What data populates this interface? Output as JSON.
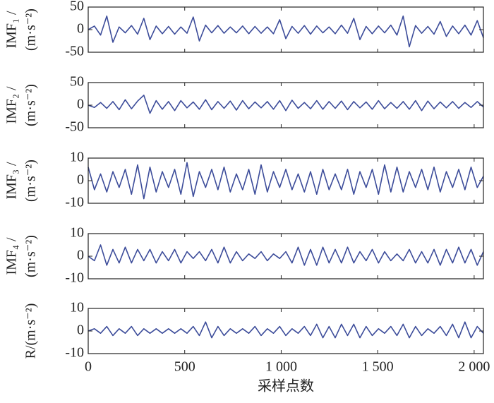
{
  "chart_data": [
    {
      "type": "line",
      "ylabel": [
        "IMF₁ /",
        "(m·s⁻²)"
      ],
      "color": "#3c4c9a",
      "x": [
        0,
        32,
        64,
        96,
        128,
        160,
        192,
        224,
        256,
        288,
        320,
        352,
        384,
        416,
        448,
        480,
        512,
        544,
        576,
        608,
        640,
        672,
        704,
        736,
        768,
        800,
        832,
        864,
        896,
        928,
        960,
        992,
        1024,
        1056,
        1088,
        1120,
        1152,
        1184,
        1216,
        1248,
        1280,
        1312,
        1344,
        1376,
        1408,
        1440,
        1472,
        1504,
        1536,
        1568,
        1600,
        1632,
        1664,
        1696,
        1728,
        1760,
        1792,
        1824,
        1856,
        1888,
        1920,
        1952,
        1984,
        2016,
        2048
      ],
      "values": [
        0,
        8,
        -12,
        30,
        -28,
        6,
        -7,
        9,
        -10,
        25,
        -22,
        8,
        -9,
        7,
        -10,
        6,
        -8,
        28,
        -25,
        10,
        -7,
        9,
        -8,
        6,
        -7,
        8,
        -9,
        7,
        -8,
        6,
        -9,
        22,
        -20,
        7,
        -8,
        9,
        -10,
        8,
        -7,
        6,
        -9,
        10,
        -8,
        25,
        -22,
        7,
        -9,
        8,
        -7,
        10,
        -12,
        30,
        -38,
        9,
        -8,
        7,
        -10,
        18,
        -15,
        8,
        -9,
        10,
        -12,
        20,
        -18
      ],
      "xlim": [
        0,
        2048
      ],
      "xticks": [
        0,
        500,
        1000,
        1500,
        2000
      ],
      "ylim": [
        -50,
        50
      ],
      "yticks": [
        -50,
        0,
        50
      ]
    },
    {
      "type": "line",
      "ylabel": [
        "IMF₂ /",
        "(m·s⁻²)"
      ],
      "color": "#3c4c9a",
      "x": [
        0,
        32,
        64,
        96,
        128,
        160,
        192,
        224,
        256,
        288,
        320,
        352,
        384,
        416,
        448,
        480,
        512,
        544,
        576,
        608,
        640,
        672,
        704,
        736,
        768,
        800,
        832,
        864,
        896,
        928,
        960,
        992,
        1024,
        1056,
        1088,
        1120,
        1152,
        1184,
        1216,
        1248,
        1280,
        1312,
        1344,
        1376,
        1408,
        1440,
        1472,
        1504,
        1536,
        1568,
        1600,
        1632,
        1664,
        1696,
        1728,
        1760,
        1792,
        1824,
        1856,
        1888,
        1920,
        1952,
        1984,
        2016,
        2048
      ],
      "values": [
        0,
        -5,
        6,
        -7,
        8,
        -10,
        12,
        -8,
        9,
        22,
        -18,
        10,
        -9,
        8,
        -12,
        10,
        -6,
        7,
        -9,
        12,
        -10,
        8,
        -7,
        9,
        -11,
        10,
        -8,
        7,
        -6,
        8,
        -9,
        10,
        -12,
        11,
        -7,
        6,
        -8,
        10,
        -9,
        8,
        -7,
        9,
        -10,
        8,
        -6,
        7,
        -9,
        10,
        -8,
        6,
        -7,
        8,
        -9,
        10,
        -12,
        9,
        -8,
        7,
        -6,
        8,
        -7,
        6,
        -5,
        8,
        -4
      ],
      "xlim": [
        0,
        2048
      ],
      "xticks": [
        0,
        500,
        1000,
        1500,
        2000
      ],
      "ylim": [
        -50,
        50
      ],
      "yticks": [
        -50,
        0,
        50
      ]
    },
    {
      "type": "line",
      "ylabel": [
        "IMF₃ /",
        "(m·s⁻²)"
      ],
      "color": "#3c4c9a",
      "x": [
        0,
        32,
        64,
        96,
        128,
        160,
        192,
        224,
        256,
        288,
        320,
        352,
        384,
        416,
        448,
        480,
        512,
        544,
        576,
        608,
        640,
        672,
        704,
        736,
        768,
        800,
        832,
        864,
        896,
        928,
        960,
        992,
        1024,
        1056,
        1088,
        1120,
        1152,
        1184,
        1216,
        1248,
        1280,
        1312,
        1344,
        1376,
        1408,
        1440,
        1472,
        1504,
        1536,
        1568,
        1600,
        1632,
        1664,
        1696,
        1728,
        1760,
        1792,
        1824,
        1856,
        1888,
        1920,
        1952,
        1984,
        2016,
        2048
      ],
      "values": [
        6,
        -4,
        3,
        -5,
        4,
        -3,
        5,
        -6,
        7,
        -8,
        6,
        -5,
        4,
        -3,
        5,
        -6,
        8,
        -7,
        4,
        -3,
        5,
        -4,
        6,
        -5,
        3,
        -4,
        5,
        -6,
        7,
        -5,
        4,
        -3,
        5,
        -4,
        3,
        -5,
        4,
        -6,
        5,
        -4,
        3,
        -4,
        5,
        -6,
        4,
        -3,
        5,
        -6,
        7,
        -5,
        6,
        -5,
        4,
        -3,
        5,
        -4,
        6,
        -5,
        4,
        -3,
        5,
        -4,
        6,
        -3,
        2
      ],
      "xlim": [
        0,
        2048
      ],
      "xticks": [
        0,
        500,
        1000,
        1500,
        2000
      ],
      "ylim": [
        -10,
        10
      ],
      "yticks": [
        -10,
        0,
        10
      ]
    },
    {
      "type": "line",
      "ylabel": [
        "IMF₄ /",
        "(m·s⁻²)"
      ],
      "color": "#3c4c9a",
      "x": [
        0,
        32,
        64,
        96,
        128,
        160,
        192,
        224,
        256,
        288,
        320,
        352,
        384,
        416,
        448,
        480,
        512,
        544,
        576,
        608,
        640,
        672,
        704,
        736,
        768,
        800,
        832,
        864,
        896,
        928,
        960,
        992,
        1024,
        1056,
        1088,
        1120,
        1152,
        1184,
        1216,
        1248,
        1280,
        1312,
        1344,
        1376,
        1408,
        1440,
        1472,
        1504,
        1536,
        1568,
        1600,
        1632,
        1664,
        1696,
        1728,
        1760,
        1792,
        1824,
        1856,
        1888,
        1920,
        1952,
        1984,
        2016,
        2048
      ],
      "values": [
        0,
        -2,
        5,
        -4,
        3,
        -3,
        4,
        -3,
        3,
        -2,
        3,
        -3,
        2,
        -2,
        3,
        -3,
        2,
        -1,
        2,
        -2,
        3,
        -3,
        4,
        -3,
        2,
        -2,
        1,
        -1,
        2,
        -2,
        1,
        -1,
        2,
        -3,
        4,
        -4,
        3,
        -4,
        4,
        -3,
        3,
        -3,
        4,
        -3,
        2,
        -2,
        3,
        -3,
        2,
        -2,
        1,
        -2,
        3,
        -3,
        2,
        -3,
        3,
        -4,
        3,
        -3,
        4,
        -3,
        3,
        -4,
        2
      ],
      "xlim": [
        0,
        2048
      ],
      "xticks": [
        0,
        500,
        1000,
        1500,
        2000
      ],
      "ylim": [
        -10,
        10
      ],
      "yticks": [
        -10,
        0,
        10
      ]
    },
    {
      "type": "line",
      "ylabel": [
        "R/(m·s⁻²)"
      ],
      "color": "#3c4c9a",
      "xlabel": "采样点数",
      "x": [
        0,
        32,
        64,
        96,
        128,
        160,
        192,
        224,
        256,
        288,
        320,
        352,
        384,
        416,
        448,
        480,
        512,
        544,
        576,
        608,
        640,
        672,
        704,
        736,
        768,
        800,
        832,
        864,
        896,
        928,
        960,
        992,
        1024,
        1056,
        1088,
        1120,
        1152,
        1184,
        1216,
        1248,
        1280,
        1312,
        1344,
        1376,
        1408,
        1440,
        1472,
        1504,
        1536,
        1568,
        1600,
        1632,
        1664,
        1696,
        1728,
        1760,
        1792,
        1824,
        1856,
        1888,
        1920,
        1952,
        1984,
        2016,
        2048
      ],
      "values": [
        0,
        1,
        -1,
        2,
        -2,
        1,
        -1,
        2,
        -2,
        1,
        -1,
        1,
        -1,
        1,
        -1,
        1,
        -1,
        2,
        -2,
        4,
        -3,
        2,
        -2,
        1,
        -1,
        1,
        -1,
        2,
        -2,
        1,
        -1,
        2,
        -2,
        1,
        -1,
        2,
        -2,
        3,
        -3,
        2,
        -3,
        3,
        -2,
        3,
        -3,
        2,
        -2,
        1,
        -1,
        2,
        -2,
        3,
        -3,
        2,
        -2,
        1,
        -1,
        2,
        -2,
        3,
        -3,
        4,
        -3,
        2,
        -1
      ],
      "xlim": [
        0,
        2048
      ],
      "xticks": [
        0,
        500,
        {
          "value": 1000,
          "label": "1 000"
        },
        {
          "value": 1500,
          "label": "1 500"
        },
        {
          "value": 2000,
          "label": "2 000"
        }
      ],
      "ylim": [
        -10,
        10
      ],
      "yticks": [
        -10,
        0,
        10
      ]
    }
  ]
}
